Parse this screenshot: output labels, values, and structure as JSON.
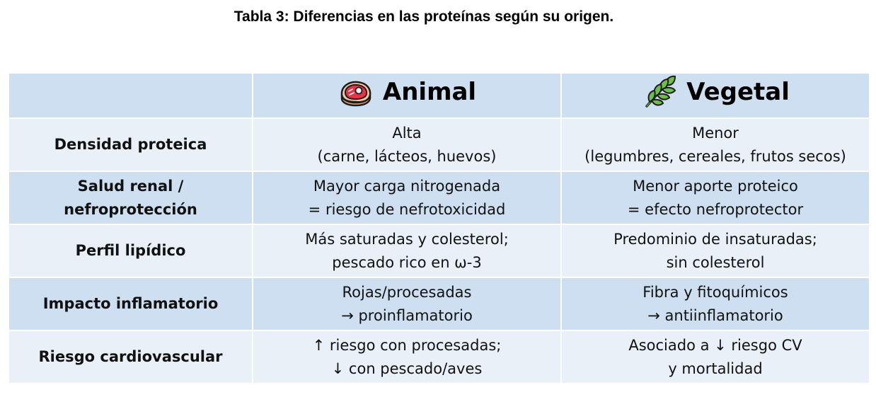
{
  "title": "Tabla 3: Diferencias en las proteínas según su origen.",
  "header": {
    "animal": {
      "icon": "meat-icon",
      "label": "Animal"
    },
    "vegetal": {
      "icon": "leaf-icon",
      "label": "Vegetal"
    }
  },
  "rows": [
    {
      "label": [
        "Densidad proteica"
      ],
      "animal": [
        "Alta",
        "(carne, lácteos, huevos)"
      ],
      "vegetal": [
        "Menor",
        "(legumbres, cereales, frutos secos)"
      ]
    },
    {
      "label": [
        "Salud renal /",
        "nefroprotección"
      ],
      "animal": [
        "Mayor carga nitrogenada",
        "= riesgo de nefrotoxicidad"
      ],
      "vegetal": [
        "Menor aporte proteico",
        "= efecto nefroprotector"
      ]
    },
    {
      "label": [
        "Perfil lipídico"
      ],
      "animal": [
        "Más saturadas y colesterol;",
        "pescado rico en ω-3"
      ],
      "vegetal": [
        "Predominio de insaturadas;",
        "sin colesterol"
      ]
    },
    {
      "label": [
        "Impacto inflamatorio"
      ],
      "animal": [
        "Rojas/procesadas",
        "→ proinflamatorio"
      ],
      "vegetal": [
        "Fibra y fitoquímicos",
        "→ antiinflamatorio"
      ]
    },
    {
      "label": [
        "Riesgo cardiovascular"
      ],
      "animal": [
        "↑ riesgo con procesadas;",
        "↓ con pescado/aves"
      ],
      "vegetal": [
        "Asociado a ↓ riesgo CV",
        "y mortalidad"
      ]
    }
  ],
  "colors": {
    "header_bg": "#cddff0",
    "row_light": "#e9f0f8",
    "row_dark": "#cddff0"
  }
}
